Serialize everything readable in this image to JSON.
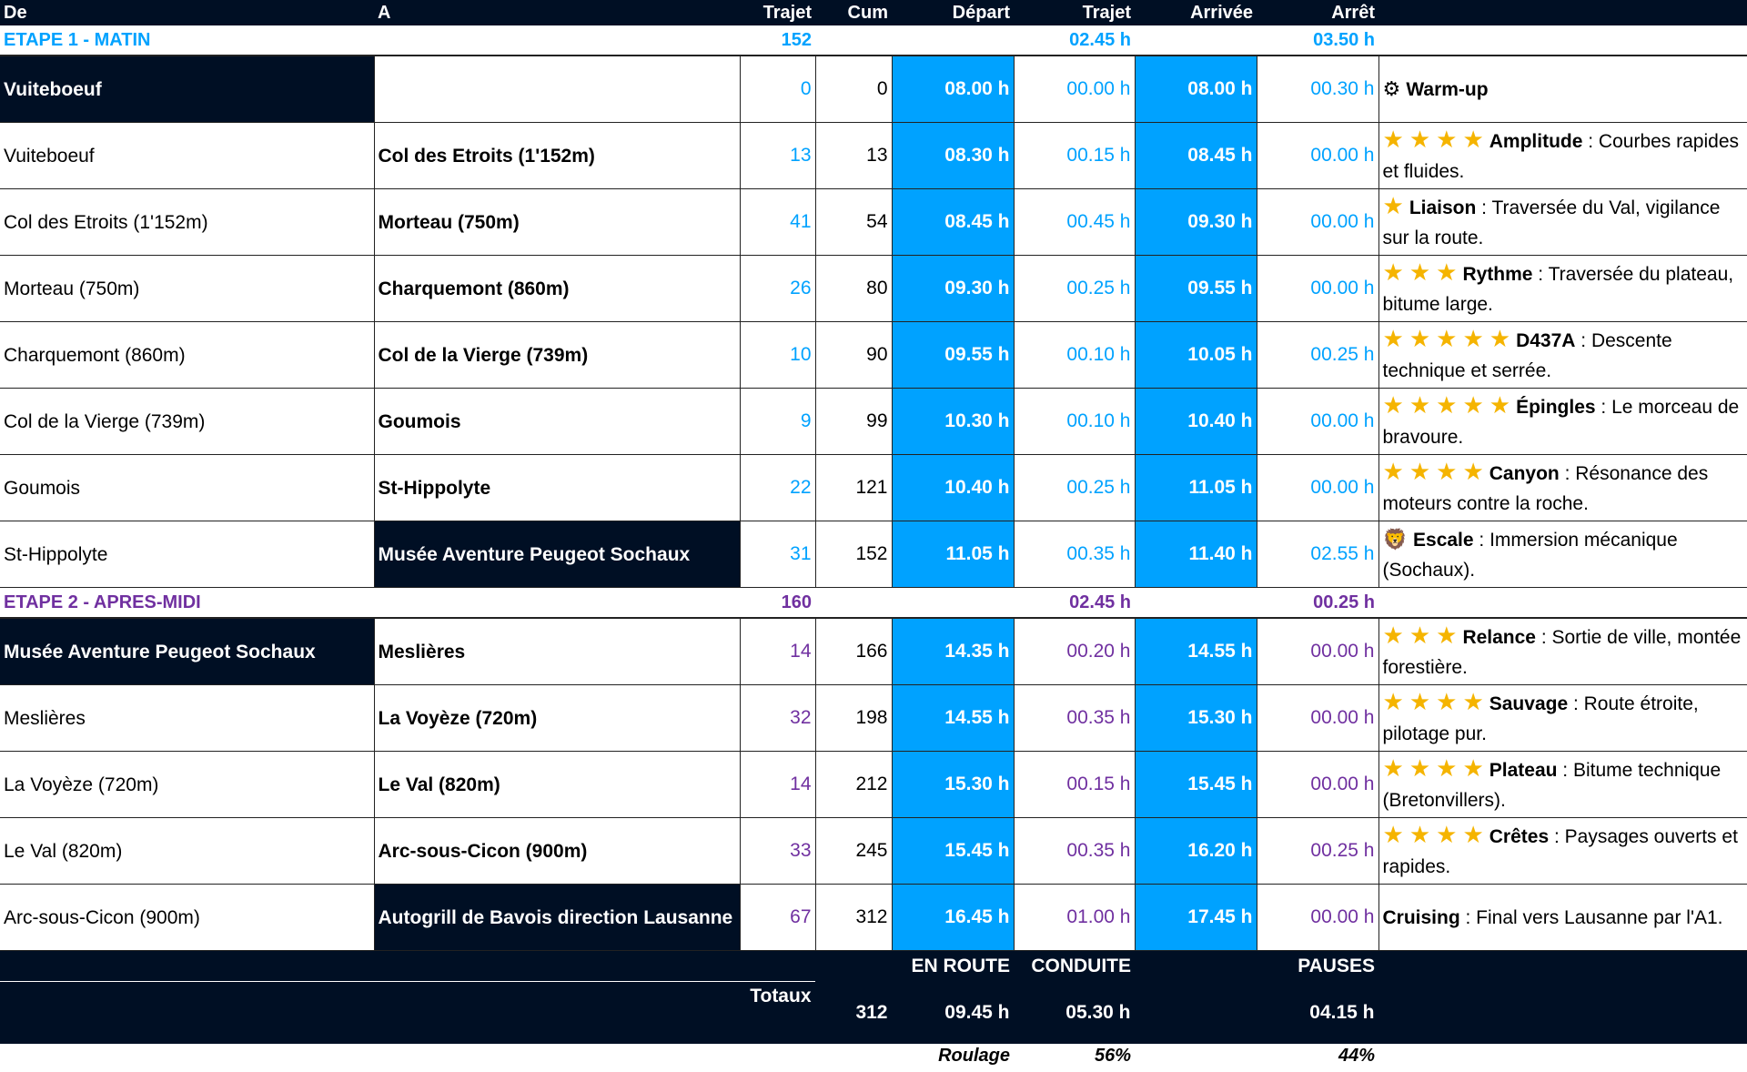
{
  "colors": {
    "dark": "#000f24",
    "blue": "#00a2ff",
    "stage1": "#00a2ff",
    "stage2": "#7030a0",
    "star": "#f5b400"
  },
  "headers": {
    "de": "De",
    "a": "A",
    "trajet": "Trajet",
    "cum": "Cum",
    "depart": "Départ",
    "trajet_time": "Trajet",
    "arrivee": "Arrivée",
    "arret": "Arrêt"
  },
  "stages": [
    {
      "title": "ETAPE 1 - MATIN",
      "trajet": "152",
      "trajet_time": "02.45 h",
      "arret": "03.50 h",
      "color": "#00a2ff",
      "rows": [
        {
          "de": "Vuiteboeuf",
          "a": "",
          "trajet": "0",
          "cum": "0",
          "depart": "08.00 h",
          "trajet_time": "00.00 h",
          "arrivee": "08.00 h",
          "arret": "00.30 h",
          "stars": 0,
          "icon": "gear-icon",
          "keyword": "Warm-up",
          "text": "",
          "de_dark": true,
          "a_dark": false
        },
        {
          "de": "Vuiteboeuf",
          "a": "Col des Etroits (1'152m)",
          "trajet": "13",
          "cum": "13",
          "depart": "08.30 h",
          "trajet_time": "00.15 h",
          "arrivee": "08.45 h",
          "arret": "00.00 h",
          "stars": 4,
          "keyword": "Amplitude",
          "text": " : Courbes rapides et fluides."
        },
        {
          "de": "Col des Etroits (1'152m)",
          "a": "Morteau (750m)",
          "trajet": "41",
          "cum": "54",
          "depart": "08.45 h",
          "trajet_time": "00.45 h",
          "arrivee": "09.30 h",
          "arret": "00.00 h",
          "stars": 1,
          "keyword": "Liaison",
          "text": " : Traversée du Val, vigilance sur la route."
        },
        {
          "de": "Morteau (750m)",
          "a": "Charquemont (860m)",
          "trajet": "26",
          "cum": "80",
          "depart": "09.30 h",
          "trajet_time": "00.25 h",
          "arrivee": "09.55 h",
          "arret": "00.00 h",
          "stars": 3,
          "keyword": "Rythme",
          "text": " : Traversée du plateau, bitume large."
        },
        {
          "de": "Charquemont (860m)",
          "a": "Col de la Vierge (739m)",
          "trajet": "10",
          "cum": "90",
          "depart": "09.55 h",
          "trajet_time": "00.10 h",
          "arrivee": "10.05 h",
          "arret": "00.25 h",
          "stars": 5,
          "keyword": "D437A",
          "text": " : Descente technique et serrée."
        },
        {
          "de": "Col de la Vierge (739m)",
          "a": "Goumois",
          "trajet": "9",
          "cum": "99",
          "depart": "10.30 h",
          "trajet_time": "00.10 h",
          "arrivee": "10.40 h",
          "arret": "00.00 h",
          "stars": 5,
          "keyword": "Épingles",
          "text": " : Le morceau de bravoure."
        },
        {
          "de": "Goumois",
          "a": "St-Hippolyte",
          "trajet": "22",
          "cum": "121",
          "depart": "10.40 h",
          "trajet_time": "00.25 h",
          "arrivee": "11.05 h",
          "arret": "00.00 h",
          "stars": 4,
          "keyword": "Canyon",
          "text": " : Résonance des moteurs contre la roche."
        },
        {
          "de": "St-Hippolyte",
          "a": "Musée Aventure Peugeot Sochaux",
          "trajet": "31",
          "cum": "152",
          "depart": "11.05 h",
          "trajet_time": "00.35 h",
          "arrivee": "11.40 h",
          "arret": "02.55 h",
          "stars": 0,
          "icon": "lion-icon",
          "keyword": "Escale",
          "text": " : Immersion mécanique (Sochaux).",
          "a_dark": true
        }
      ]
    },
    {
      "title": "ETAPE 2 - APRES-MIDI",
      "trajet": "160",
      "trajet_time": "02.45 h",
      "arret": "00.25 h",
      "color": "#7030a0",
      "rows": [
        {
          "de": "Musée Aventure Peugeot Sochaux",
          "a": "Meslières",
          "trajet": "14",
          "cum": "166",
          "depart": "14.35 h",
          "trajet_time": "00.20 h",
          "arrivee": "14.55 h",
          "arret": "00.00 h",
          "stars": 3,
          "keyword": "Relance",
          "text": " : Sortie de ville, montée forestière.",
          "de_dark": true
        },
        {
          "de": "Meslières",
          "a": "La Voyèze (720m)",
          "trajet": "32",
          "cum": "198",
          "depart": "14.55 h",
          "trajet_time": "00.35 h",
          "arrivee": "15.30 h",
          "arret": "00.00 h",
          "stars": 4,
          "keyword": "Sauvage",
          "text": " : Route étroite, pilotage pur."
        },
        {
          "de": "La Voyèze (720m)",
          "a": "Le Val (820m)",
          "trajet": "14",
          "cum": "212",
          "depart": "15.30 h",
          "trajet_time": "00.15 h",
          "arrivee": "15.45 h",
          "arret": "00.00 h",
          "stars": 4,
          "keyword": "Plateau",
          "text": " : Bitume technique (Bretonvillers)."
        },
        {
          "de": "Le Val (820m)",
          "a": "Arc-sous-Cicon (900m)",
          "trajet": "33",
          "cum": "245",
          "depart": "15.45 h",
          "trajet_time": "00.35 h",
          "arrivee": "16.20 h",
          "arret": "00.25 h",
          "stars": 4,
          "keyword": "Crêtes",
          "text": " : Paysages ouverts et rapides."
        },
        {
          "de": "Arc-sous-Cicon (900m)",
          "a": "Autogrill de Bavois direction Lausanne",
          "trajet": "67",
          "cum": "312",
          "depart": "16.45 h",
          "trajet_time": "01.00 h",
          "arrivee": "17.45 h",
          "arret": "00.00 h",
          "stars": 0,
          "keyword": "Cruising",
          "text": " : Final vers Lausanne par l'A1.",
          "a_dark": true
        }
      ]
    }
  ],
  "totals": {
    "label": "Totaux",
    "en_route_label": "EN ROUTE",
    "conduite_label": "CONDUITE",
    "pauses_label": "PAUSES",
    "km": "312",
    "en_route": "09.45 h",
    "conduite": "05.30 h",
    "pauses": "04.15 h",
    "roulage_label": "Roulage",
    "roulage_pct": "56%",
    "pauses_pct": "44%"
  }
}
